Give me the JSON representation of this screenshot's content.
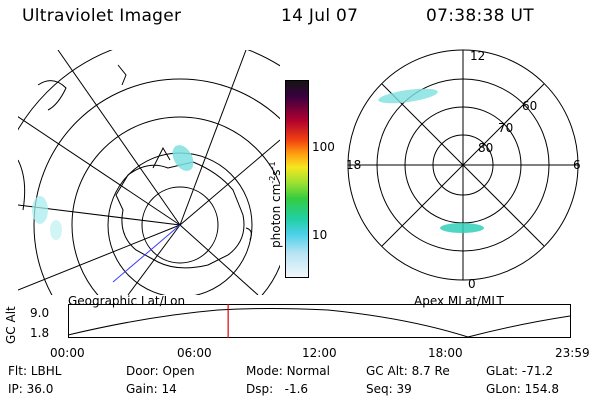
{
  "header": {
    "title": "Ultraviolet Imager",
    "date": "14 Jul 07",
    "time": "07:38:38 UT"
  },
  "left_panel": {
    "label": "Geographic Lat/Lon"
  },
  "right_panel": {
    "label": "Apex MLat/MLT",
    "mlt_labels": {
      "top": "12",
      "bottom": "0",
      "left": "18",
      "right": "6"
    },
    "mlat_labels": [
      "60",
      "70",
      "80"
    ]
  },
  "colorbar": {
    "axis_label": "photon cm-2s-1",
    "label_base": "photon cm",
    "label_exp1": "-2",
    "label_mid": "s",
    "label_exp2": "-1",
    "ticks": [
      "100",
      "10"
    ]
  },
  "timeline": {
    "y_label": "GC Alt",
    "y_ticks": [
      "9.0",
      "1.8"
    ],
    "x_ticks": [
      "00:00",
      "06:00",
      "12:00",
      "18:00",
      "23:59"
    ],
    "current_time_fraction": 0.318
  },
  "info": [
    [
      {
        "k": "Flt:",
        "v": "LBHL"
      },
      {
        "k": "Door:",
        "v": "Open"
      },
      {
        "k": "Mode:",
        "v": "Normal"
      },
      {
        "k": "GC Alt:",
        "v": "8.7 Re"
      },
      {
        "k": "GLat:",
        "v": "-71.2"
      }
    ],
    [
      {
        "k": "IP:",
        "v": "36.0"
      },
      {
        "k": "Gain:",
        "v": "14"
      },
      {
        "k": "Dsp:",
        "v": "-1.6"
      },
      {
        "k": "Seq:",
        "v": "39"
      },
      {
        "k": "GLon:",
        "v": "154.8"
      }
    ]
  ],
  "colors": {
    "line": "#000000",
    "marker": "#e00000",
    "aurora": "#7fe0e0",
    "nadir": "#3b3bff"
  }
}
